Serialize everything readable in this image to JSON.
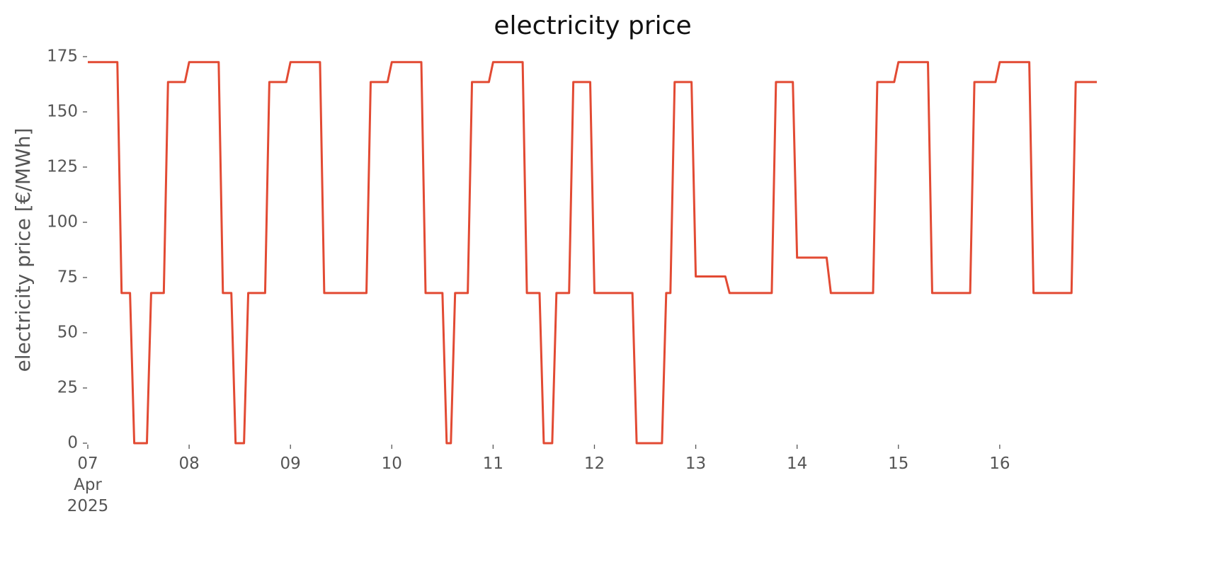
{
  "chart_data": {
    "type": "line",
    "title": "electricity price",
    "y_label": "electricity price [€/MWh]",
    "x": [
      "2025-04-07 00:00",
      "2025-04-07 07:00",
      "2025-04-07 08:00",
      "2025-04-07 10:00",
      "2025-04-07 11:00",
      "2025-04-07 14:00",
      "2025-04-07 15:00",
      "2025-04-07 18:00",
      "2025-04-07 19:00",
      "2025-04-07 23:00",
      "2025-04-08 00:00",
      "2025-04-08 07:00",
      "2025-04-08 08:00",
      "2025-04-08 10:00",
      "2025-04-08 11:00",
      "2025-04-08 13:00",
      "2025-04-08 14:00",
      "2025-04-08 18:00",
      "2025-04-08 19:00",
      "2025-04-08 23:00",
      "2025-04-09 00:00",
      "2025-04-09 07:00",
      "2025-04-09 08:00",
      "2025-04-09 18:00",
      "2025-04-09 19:00",
      "2025-04-09 23:00",
      "2025-04-10 00:00",
      "2025-04-10 07:00",
      "2025-04-10 08:00",
      "2025-04-10 12:00",
      "2025-04-10 13:00",
      "2025-04-10 14:00",
      "2025-04-10 15:00",
      "2025-04-10 18:00",
      "2025-04-10 19:00",
      "2025-04-10 23:00",
      "2025-04-11 00:00",
      "2025-04-11 07:00",
      "2025-04-11 08:00",
      "2025-04-11 11:00",
      "2025-04-11 12:00",
      "2025-04-11 14:00",
      "2025-04-11 15:00",
      "2025-04-11 18:00",
      "2025-04-11 19:00",
      "2025-04-11 23:00",
      "2025-04-12 00:00",
      "2025-04-12 09:00",
      "2025-04-12 10:00",
      "2025-04-12 16:00",
      "2025-04-12 17:00",
      "2025-04-12 18:00",
      "2025-04-12 19:00",
      "2025-04-12 23:00",
      "2025-04-13 00:00",
      "2025-04-13 07:00",
      "2025-04-13 08:00",
      "2025-04-13 18:00",
      "2025-04-13 19:00",
      "2025-04-13 23:00",
      "2025-04-14 00:00",
      "2025-04-14 07:00",
      "2025-04-14 08:00",
      "2025-04-14 18:00",
      "2025-04-14 19:00",
      "2025-04-14 23:00",
      "2025-04-15 00:00",
      "2025-04-15 07:00",
      "2025-04-15 08:00",
      "2025-04-15 17:00",
      "2025-04-15 18:00",
      "2025-04-15 23:00",
      "2025-04-16 00:00",
      "2025-04-16 07:00",
      "2025-04-16 08:00",
      "2025-04-16 17:00",
      "2025-04-16 18:00",
      "2025-04-16 23:00"
    ],
    "series": [
      {
        "color": "#e24a33",
        "values": [
          172.5,
          172.5,
          68,
          68,
          0,
          0,
          68,
          68,
          163.5,
          163.5,
          172.5,
          172.5,
          68,
          68,
          0,
          0,
          68,
          68,
          163.5,
          163.5,
          172.5,
          172.5,
          68,
          68,
          163.5,
          163.5,
          172.5,
          172.5,
          68,
          68,
          0,
          0,
          68,
          68,
          163.5,
          163.5,
          172.5,
          172.5,
          68,
          68,
          0,
          0,
          68,
          68,
          163.5,
          163.5,
          68,
          68,
          0,
          0,
          68,
          68,
          163.5,
          163.5,
          75.5,
          75.5,
          68,
          68,
          163.5,
          163.5,
          84,
          84,
          68,
          68,
          163.5,
          163.5,
          172.5,
          172.5,
          68,
          68,
          163.5,
          163.5,
          172.5,
          172.5,
          68,
          68,
          163.5,
          163.5
        ]
      }
    ],
    "xlim": [
      "2025-04-07 00:00",
      "2025-04-16 23:00"
    ],
    "xticks": [
      {
        "value": "2025-04-07 00:00",
        "label": "07 Apr 2025"
      },
      {
        "value": "2025-04-08 00:00",
        "label": "08"
      },
      {
        "value": "2025-04-09 00:00",
        "label": "09"
      },
      {
        "value": "2025-04-10 00:00",
        "label": "10"
      },
      {
        "value": "2025-04-11 00:00",
        "label": "11"
      },
      {
        "value": "2025-04-12 00:00",
        "label": "12"
      },
      {
        "value": "2025-04-13 00:00",
        "label": "13"
      },
      {
        "value": "2025-04-14 00:00",
        "label": "14"
      },
      {
        "value": "2025-04-15 00:00",
        "label": "15"
      },
      {
        "value": "2025-04-16 00:00",
        "label": "16"
      }
    ],
    "ylim": [
      0,
      175
    ],
    "yticks": [
      0,
      25,
      50,
      75,
      100,
      125,
      150,
      175
    ],
    "grid": false
  }
}
